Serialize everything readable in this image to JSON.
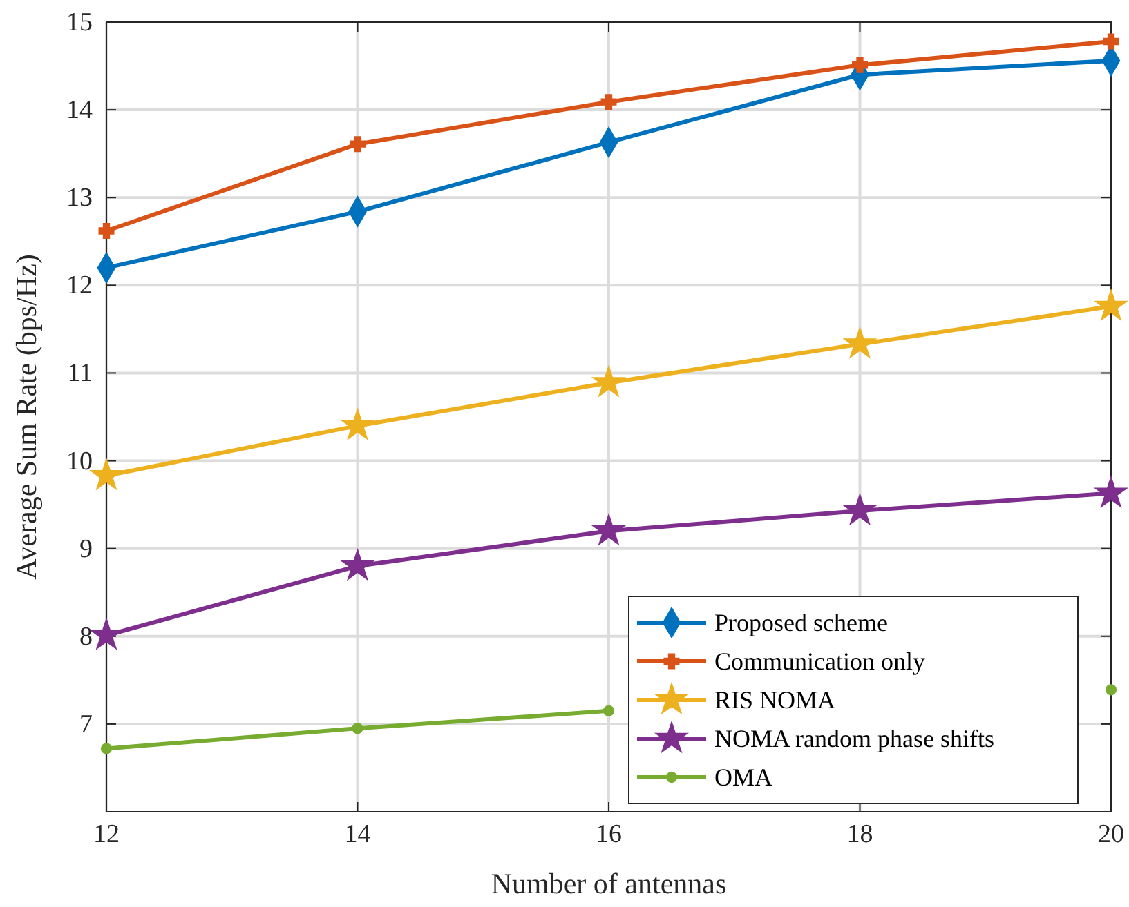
{
  "chart_data": {
    "type": "line",
    "xlabel": "Number of antennas",
    "ylabel": "Average Sum Rate (bps/Hz)",
    "x": [
      12,
      14,
      16,
      18,
      20
    ],
    "xlim": [
      12,
      20
    ],
    "xticks": [
      12,
      14,
      16,
      18,
      20
    ],
    "ylim": [
      6,
      15
    ],
    "yticks": [
      7,
      8,
      9,
      10,
      11,
      12,
      13,
      14,
      15
    ],
    "grid": true,
    "legend": "bottom right",
    "series": [
      {
        "name": "Proposed scheme",
        "color": "#0072bd",
        "marker": "diamond",
        "values": [
          12.2,
          12.84,
          13.63,
          14.4,
          14.56
        ]
      },
      {
        "name": "Communication only",
        "color": "#d95319",
        "marker": "cross",
        "values": [
          12.62,
          13.61,
          14.09,
          14.51,
          14.78
        ]
      },
      {
        "name": "RIS NOMA",
        "color": "#edb120",
        "marker": "star",
        "values": [
          9.83,
          10.4,
          10.89,
          11.33,
          11.76
        ]
      },
      {
        "name": "NOMA random phase shifts",
        "color": "#7e2f8e",
        "marker": "star",
        "values": [
          8.01,
          8.8,
          9.2,
          9.43,
          9.63
        ]
      },
      {
        "name": "OMA",
        "color": "#77ac30",
        "marker": "circle",
        "values": [
          6.72,
          6.95,
          7.15,
          null,
          7.39
        ]
      }
    ]
  }
}
